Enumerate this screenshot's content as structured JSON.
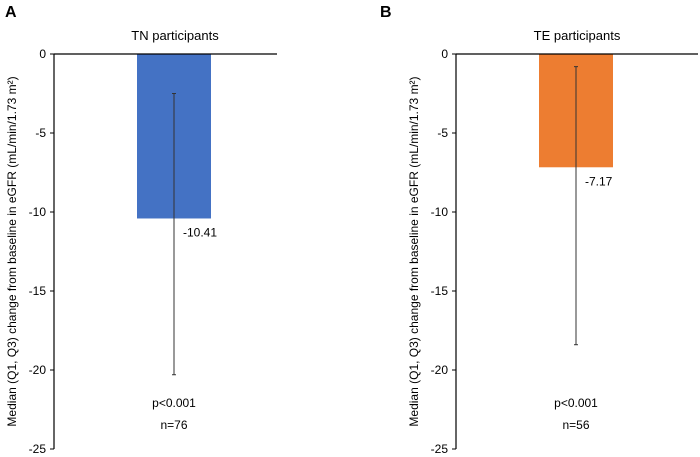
{
  "chart_data": [
    {
      "type": "bar",
      "panel_label": "A",
      "title": "TN participants",
      "ylabel": "Median (Q1, Q3) change from baseline in eGFR (mL/min/1.73 m²)",
      "ylim": [
        -25,
        0
      ],
      "yticks": [
        0,
        -5,
        -10,
        -15,
        -20,
        -25
      ],
      "ytick_labels": [
        "0",
        "-5",
        "-10",
        "-15",
        "-20",
        "-25"
      ],
      "values": [
        -10.41
      ],
      "value_labels": [
        "-10.41"
      ],
      "q1": -20.3,
      "q3": -2.5,
      "bar_color": "#4472C4",
      "p_value": "p<0.001",
      "n_label": "n=76"
    },
    {
      "type": "bar",
      "panel_label": "B",
      "title": "TE participants",
      "ylabel": "Median (Q1, Q3) change from baseline in eGFR (mL/min/1.73 m²)",
      "ylim": [
        -25,
        0
      ],
      "yticks": [
        0,
        -5,
        -10,
        -15,
        -20,
        -25
      ],
      "ytick_labels": [
        "0",
        "-5",
        "-10",
        "-15",
        "-20",
        "-25"
      ],
      "values": [
        -7.17
      ],
      "value_labels": [
        "-7.17"
      ],
      "q1": -18.4,
      "q3": -0.8,
      "bar_color": "#ED7D31",
      "p_value": "p<0.001",
      "n_label": "n=56"
    }
  ]
}
